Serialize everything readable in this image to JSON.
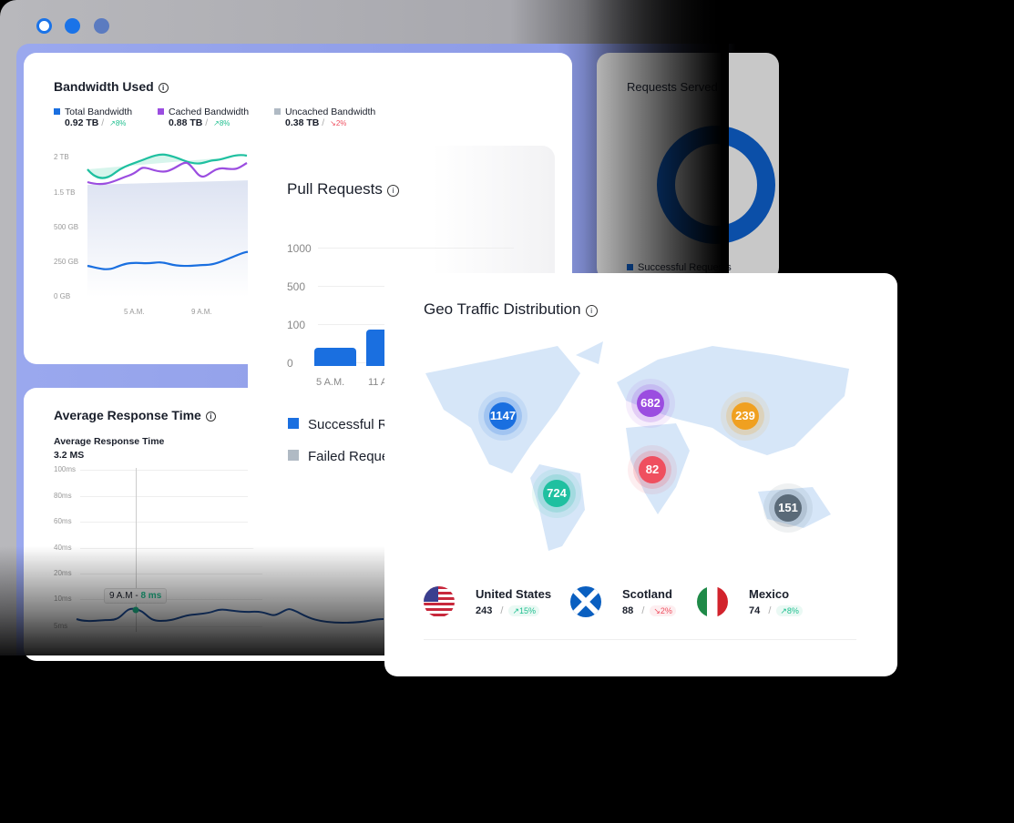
{
  "window": {
    "dots": [
      "#ffffff",
      "#1a73e8",
      "#4a6fb0"
    ]
  },
  "bandwidth": {
    "title": "Bandwidth Used",
    "legend": [
      {
        "label": "Total Bandwidth",
        "value": "0.92 TB",
        "change": "8%",
        "trend": "up",
        "color": "#1a6fe0"
      },
      {
        "label": "Cached Bandwidth",
        "value": "0.88 TB",
        "change": "8%",
        "trend": "up",
        "color": "#9b4de0"
      },
      {
        "label": "Uncached Bandwidth",
        "value": "0.38 TB",
        "change": "2%",
        "trend": "down",
        "color": "#b0bac4"
      }
    ],
    "y_ticks": [
      "2 TB",
      "1.5 TB",
      "500 GB",
      "250 GB",
      "0 GB"
    ],
    "x_ticks": [
      "5 A.M.",
      "9 A.M."
    ]
  },
  "requests_served": {
    "title": "Requests Served",
    "legend": [
      "Successful Requests"
    ]
  },
  "pull_requests": {
    "title": "Pull Requests",
    "y_ticks": [
      "1000",
      "500",
      "100",
      "0"
    ],
    "x_ticks": [
      "5 A.M.",
      "11 A.M."
    ],
    "bars": [
      {
        "value": 160,
        "color": "#1a6fe0"
      },
      {
        "value": 200,
        "color": "#1a6fe0"
      }
    ],
    "legend": [
      {
        "label": "Successful Requests",
        "color": "#1a6fe0"
      },
      {
        "label": "Failed Requests",
        "color": "#b0bac4"
      }
    ]
  },
  "response_time": {
    "title": "Average Response Time",
    "subtitle": "Average Response Time",
    "value": "3.2 MS",
    "y_ticks": [
      "100ms",
      "80ms",
      "60ms",
      "40ms",
      "20ms",
      "10ms",
      "5ms"
    ],
    "tooltip": {
      "time": "9 A.M",
      "sep": " - ",
      "value": "8 ms"
    }
  },
  "geo": {
    "title": "Geo Traffic Distribution",
    "bubbles": [
      {
        "value": "1147",
        "color": "#1a6fe0"
      },
      {
        "value": "682",
        "color": "#9b4de0"
      },
      {
        "value": "239",
        "color": "#f0a020"
      },
      {
        "value": "82",
        "color": "#ef4f5f"
      },
      {
        "value": "724",
        "color": "#1fc0a0"
      },
      {
        "value": "151",
        "color": "#5a6a78"
      }
    ],
    "countries": [
      {
        "name": "United States",
        "value": "243",
        "change": "15%",
        "trend": "up"
      },
      {
        "name": "Scotland",
        "value": "88",
        "change": "2%",
        "trend": "down"
      },
      {
        "name": "Mexico",
        "value": "74",
        "change": "8%",
        "trend": "up"
      }
    ]
  },
  "colors": {
    "up": "#1fbf8f",
    "down": "#ef4f5f",
    "map": "#d6e6f8"
  }
}
